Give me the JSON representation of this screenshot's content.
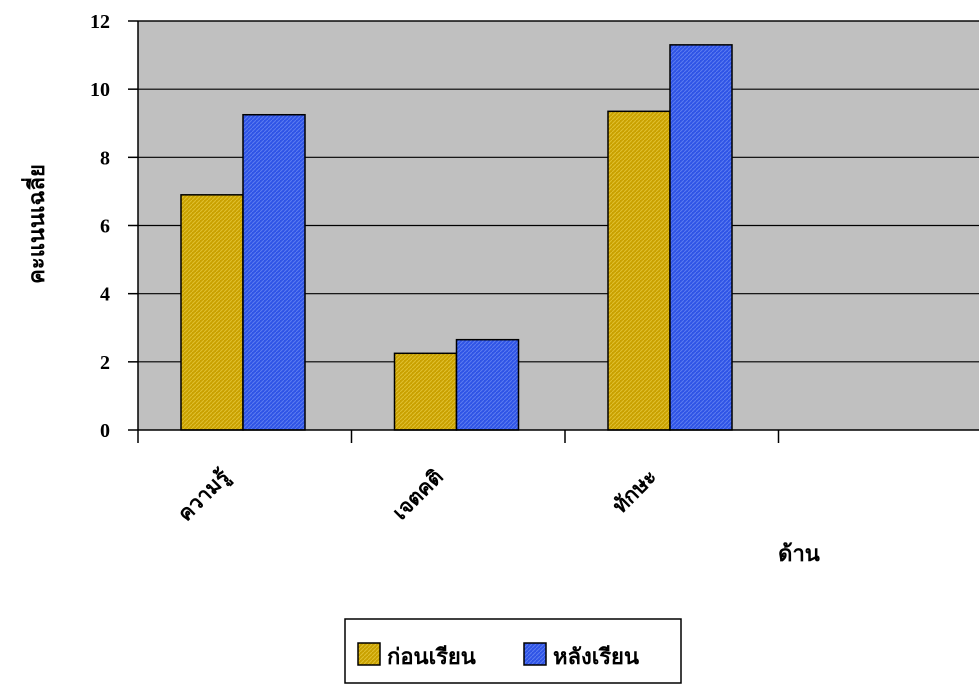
{
  "chart_data": {
    "type": "bar",
    "categories": [
      "ความรู้",
      "เจตคติ",
      "ทักษะ"
    ],
    "series": [
      {
        "name": "ก่อนเรียน",
        "values": [
          6.9,
          2.25,
          9.35
        ]
      },
      {
        "name": "หลังเรียน",
        "values": [
          9.25,
          2.65,
          11.3
        ]
      }
    ],
    "xlabel": "ด้าน",
    "ylabel": "คะแนนเฉลี่ย",
    "ylim": [
      0,
      12
    ],
    "yticks": [
      0,
      2,
      4,
      6,
      8,
      10,
      12
    ],
    "grid": true,
    "legend": "bottom",
    "colors": {
      "plot_background": "#c0c0c0",
      "series": [
        "#c9a100",
        "#2f54e6"
      ]
    }
  }
}
